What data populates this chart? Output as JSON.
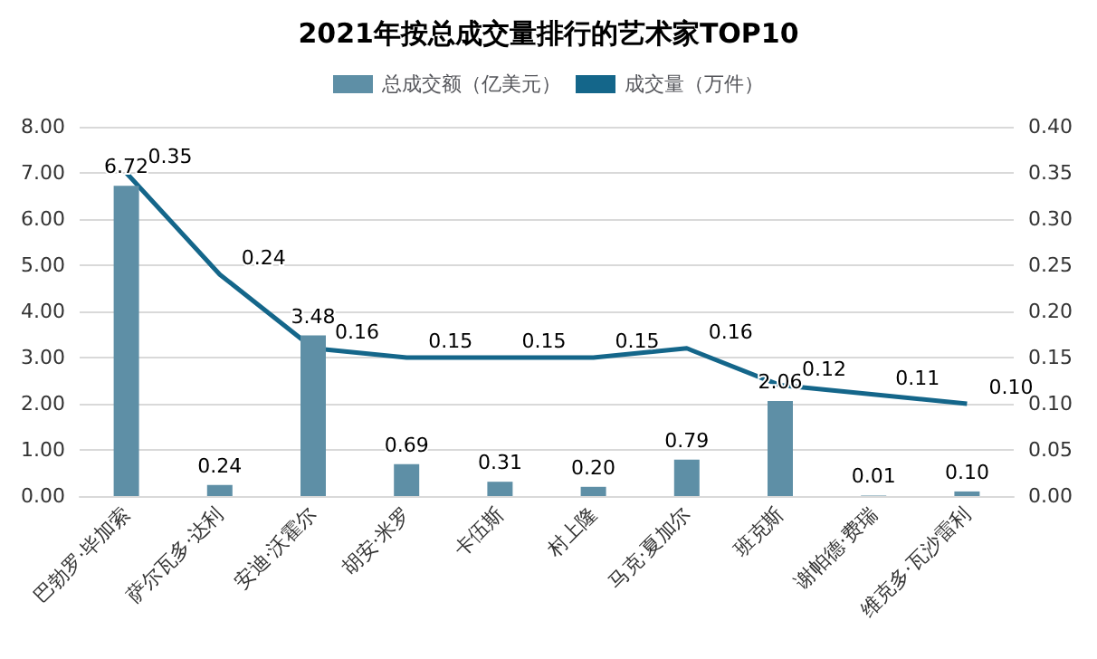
{
  "chart_data": {
    "type": "bar",
    "title": "2021年按总成交量排行的艺术家TOP10",
    "categories": [
      "巴勃罗·毕加索",
      "萨尔瓦多·达利",
      "安迪·沃霍尔",
      "胡安·米罗",
      "卡伍斯",
      "村上隆",
      "马克·夏加尔",
      "班克斯",
      "谢帕德·费瑞",
      "维克多·瓦沙雷利"
    ],
    "series": [
      {
        "name": "总成交额（亿美元）",
        "color": "#5e8fa6",
        "values": [
          6.72,
          0.24,
          3.48,
          0.69,
          0.31,
          0.2,
          0.79,
          2.06,
          0.01,
          0.1
        ],
        "value_labels": [
          "6.72",
          "0.24",
          "3.48",
          "0.69",
          "0.31",
          "0.20",
          "0.79",
          "2.06",
          "0.01",
          "0.10"
        ]
      },
      {
        "name": "成交量（万件）",
        "type": "line",
        "axis": "y2",
        "color": "#14668a",
        "values": [
          0.35,
          0.24,
          0.16,
          0.15,
          0.15,
          0.15,
          0.16,
          0.12,
          0.11,
          0.1
        ],
        "value_labels": [
          "0.35",
          "0.24",
          "0.16",
          "0.15",
          "0.15",
          "0.15",
          "0.16",
          "0.12",
          "0.11",
          "0.10"
        ]
      }
    ],
    "ylim": [
      0,
      8
    ],
    "yticks": [
      {
        "value": 0,
        "label": "0.00"
      },
      {
        "value": 1,
        "label": "1.00"
      },
      {
        "value": 2,
        "label": "2.00"
      },
      {
        "value": 3,
        "label": "3.00"
      },
      {
        "value": 4,
        "label": "4.00"
      },
      {
        "value": 5,
        "label": "5.00"
      },
      {
        "value": 6,
        "label": "6.00"
      },
      {
        "value": 7,
        "label": "7.00"
      },
      {
        "value": 8,
        "label": "8.00"
      }
    ],
    "y2lim": [
      0,
      0.4
    ],
    "y2ticks": [
      {
        "value": 0,
        "label": "0.00"
      },
      {
        "value": 0.05,
        "label": "0.05"
      },
      {
        "value": 0.1,
        "label": "0.10"
      },
      {
        "value": 0.15,
        "label": "0.15"
      },
      {
        "value": 0.2,
        "label": "0.20"
      },
      {
        "value": 0.25,
        "label": "0.25"
      },
      {
        "value": 0.3,
        "label": "0.30"
      },
      {
        "value": 0.35,
        "label": "0.35"
      },
      {
        "value": 0.4,
        "label": "0.40"
      }
    ],
    "grid": "y",
    "legend": "top",
    "marker": "none"
  }
}
